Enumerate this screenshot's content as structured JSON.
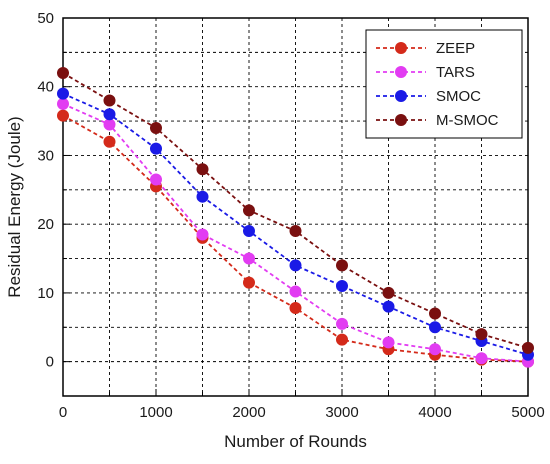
{
  "chart_data": {
    "type": "line",
    "xlabel": "Number of Rounds",
    "ylabel": "Residual Energy (Joule)",
    "xlim": [
      0,
      5000
    ],
    "ylim": [
      -5,
      50
    ],
    "xticks": [
      0,
      1000,
      2000,
      3000,
      4000,
      5000
    ],
    "yticks": [
      0,
      10,
      20,
      30,
      40,
      50
    ],
    "grid": true,
    "legend_position": "top-right",
    "x": [
      0,
      500,
      1000,
      1500,
      2000,
      2500,
      3000,
      3500,
      4000,
      4500,
      5000
    ],
    "series": [
      {
        "name": "ZEEP",
        "color": "#d42a1a",
        "values": [
          35.8,
          32,
          25.5,
          18,
          11.5,
          7.8,
          3.2,
          1.8,
          1.0,
          0.3,
          0
        ]
      },
      {
        "name": "TARS",
        "color": "#e23cf2",
        "values": [
          37.5,
          34.5,
          26.5,
          18.5,
          15,
          10.2,
          5.5,
          2.8,
          1.8,
          0.5,
          0
        ]
      },
      {
        "name": "SMOC",
        "color": "#1a1ae6",
        "values": [
          39,
          36,
          31,
          24,
          19,
          14,
          11,
          8,
          5,
          3,
          1
        ]
      },
      {
        "name": "M-SMOC",
        "color": "#7a1010",
        "values": [
          42,
          38,
          34,
          28,
          22,
          19,
          14,
          10,
          7,
          4,
          2
        ]
      }
    ]
  }
}
